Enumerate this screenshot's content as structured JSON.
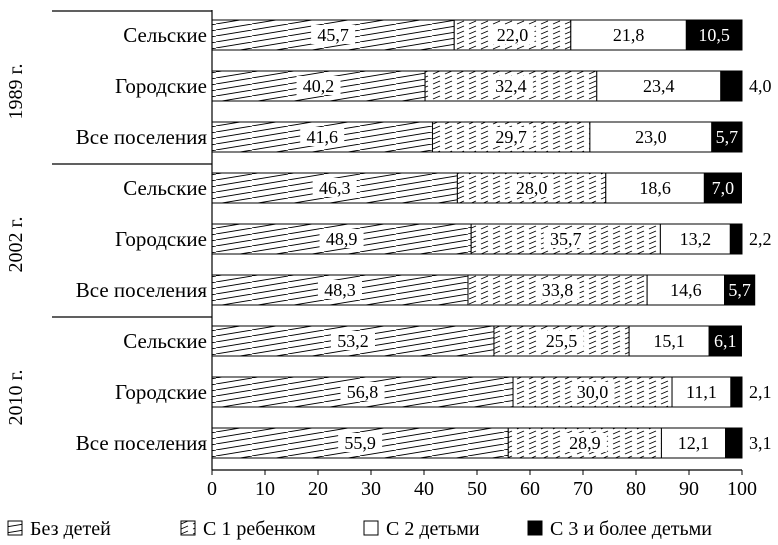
{
  "chart_data": {
    "type": "bar",
    "stacked": true,
    "orientation": "horizontal",
    "title": "",
    "xlabel": "",
    "ylabel": "",
    "xlim": [
      0,
      100
    ],
    "x_ticks": [
      "0",
      "10",
      "20",
      "30",
      "40",
      "50",
      "60",
      "70",
      "80",
      "90",
      "100"
    ],
    "grid": false,
    "legend_position": "bottom",
    "groups": [
      {
        "label": "1989 г.",
        "categories": [
          {
            "label": "Сельские",
            "values": [
              "45,7",
              "22,0",
              "21,8",
              "10,5"
            ]
          },
          {
            "label": "Городские",
            "values": [
              "40,2",
              "32,4",
              "23,4",
              "4,0"
            ]
          },
          {
            "label": "Все поселения",
            "values": [
              "41,6",
              "29,7",
              "23,0",
              "5,7"
            ]
          }
        ]
      },
      {
        "label": "2002 г.",
        "categories": [
          {
            "label": "Сельские",
            "values": [
              "46,3",
              "28,0",
              "18,6",
              "7,0"
            ]
          },
          {
            "label": "Городские",
            "values": [
              "48,9",
              "35,7",
              "13,2",
              "2,2"
            ]
          },
          {
            "label": "Все поселения",
            "values": [
              "48,3",
              "33,8",
              "14,6",
              "5,7"
            ]
          }
        ]
      },
      {
        "label": "2010 г.",
        "categories": [
          {
            "label": "Сельские",
            "values": [
              "53,2",
              "25,5",
              "15,1",
              "6,1"
            ]
          },
          {
            "label": "Городские",
            "values": [
              "56,8",
              "30,0",
              "11,1",
              "2,1"
            ]
          },
          {
            "label": "Все поселения",
            "values": [
              "55,9",
              "28,9",
              "12,1",
              "3,1"
            ]
          }
        ]
      }
    ],
    "series": [
      {
        "name": "Без детей",
        "pattern": "diagonal-lines"
      },
      {
        "name": "С 1 ребенком",
        "pattern": "dashed-lines"
      },
      {
        "name": "С 2 детьми",
        "pattern": "white"
      },
      {
        "name": "С 3 и более детьми",
        "pattern": "black"
      }
    ]
  }
}
